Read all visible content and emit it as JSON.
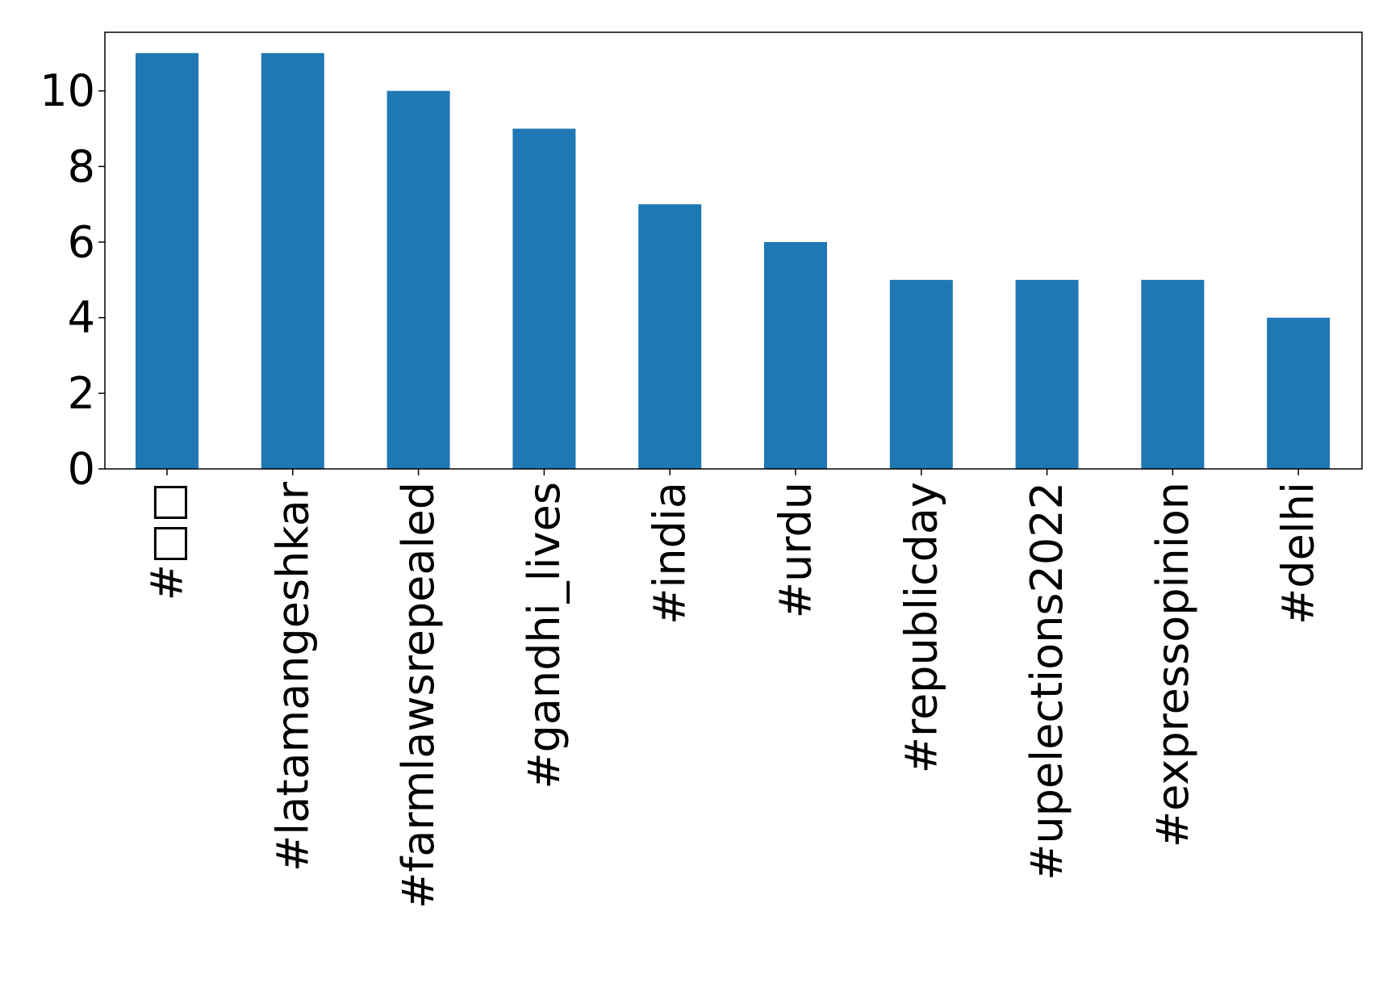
{
  "chart_data": {
    "type": "bar",
    "title": "",
    "xlabel": "",
    "ylabel": "",
    "categories": [
      "#□□",
      "#latamangeshkar",
      "#farmlawsrepealed",
      "#gandhi_lives",
      "#india",
      "#urdu",
      "#republicday",
      "#upelections2022",
      "#expressopinion",
      "#delhi"
    ],
    "values": [
      11,
      11,
      10,
      9,
      7,
      6,
      5,
      5,
      5,
      4
    ],
    "ylim": [
      0,
      11.55
    ],
    "yticks": [
      0,
      2,
      4,
      6,
      8,
      10
    ],
    "grid": false,
    "legend": "none",
    "bar_color": "#1f77b4"
  }
}
